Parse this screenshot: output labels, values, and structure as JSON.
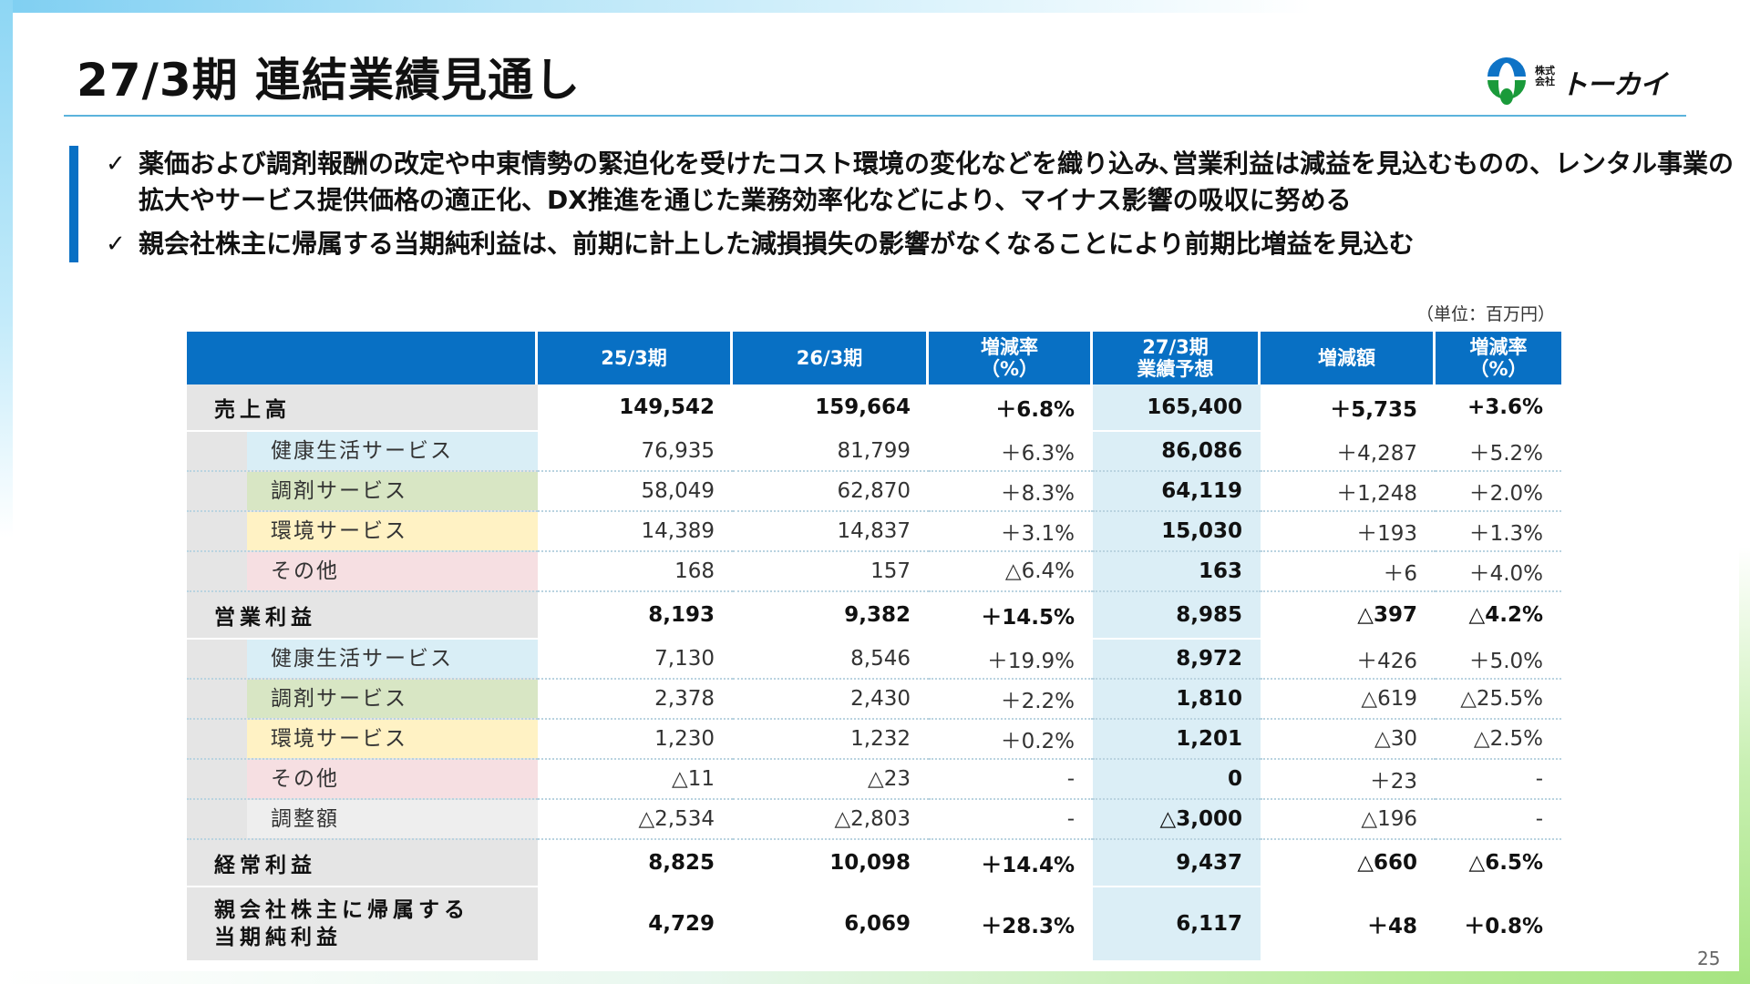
{
  "title": "27/3期 連結業績見通し",
  "logo": {
    "small": "株式会社",
    "name": "トーカイ"
  },
  "bullets": [
    "薬価および調剤報酬の改定や中東情勢の緊迫化を受けたコスト環境の変化などを織り込み､営業利益は減益を見込むものの、レンタル事業の拡大やサービス提供価格の適正化、DX推進を通じた業務効率化などにより、マイナス影響の吸収に努める",
    "親会社株主に帰属する当期純利益は、前期に計上した減損損失の影響がなくなることにより前期比増益を見込む"
  ],
  "unit": "（単位：百万円）",
  "table": {
    "headers": [
      "",
      "25/3期",
      "26/3期",
      "増減率\n（%）",
      "27/3期\n業績予想",
      "増減額",
      "増減率\n（%）"
    ],
    "rows": [
      {
        "type": "main",
        "label": "売上高",
        "cells": [
          "149,542",
          "159,664",
          "＋6.8%",
          "165,400",
          "＋5,735",
          "+3.6%"
        ]
      },
      {
        "type": "sub",
        "seg": "health",
        "label": "健康生活サービス",
        "cells": [
          "76,935",
          "81,799",
          "＋6.3%",
          "86,086",
          "＋4,287",
          "＋5.2%"
        ]
      },
      {
        "type": "sub",
        "seg": "pharm",
        "label": "調剤サービス",
        "cells": [
          "58,049",
          "62,870",
          "＋8.3%",
          "64,119",
          "＋1,248",
          "＋2.0%"
        ]
      },
      {
        "type": "sub",
        "seg": "env",
        "label": "環境サービス",
        "cells": [
          "14,389",
          "14,837",
          "＋3.1%",
          "15,030",
          "＋193",
          "＋1.3%"
        ]
      },
      {
        "type": "sub",
        "seg": "other",
        "label": "その他",
        "cells": [
          "168",
          "157",
          "△6.4%",
          "163",
          "＋6",
          "＋4.0%"
        ]
      },
      {
        "type": "main",
        "label": "営業利益",
        "cells": [
          "8,193",
          "9,382",
          "＋14.5%",
          "8,985",
          "△397",
          "△4.2%"
        ]
      },
      {
        "type": "sub",
        "seg": "health",
        "label": "健康生活サービス",
        "cells": [
          "7,130",
          "8,546",
          "＋19.9%",
          "8,972",
          "＋426",
          "＋5.0%"
        ]
      },
      {
        "type": "sub",
        "seg": "pharm",
        "label": "調剤サービス",
        "cells": [
          "2,378",
          "2,430",
          "＋2.2%",
          "1,810",
          "△619",
          "△25.5%"
        ]
      },
      {
        "type": "sub",
        "seg": "env",
        "label": "環境サービス",
        "cells": [
          "1,230",
          "1,232",
          "＋0.2%",
          "1,201",
          "△30",
          "△2.5%"
        ]
      },
      {
        "type": "sub",
        "seg": "other",
        "label": "その他",
        "cells": [
          "△11",
          "△23",
          "-",
          "0",
          "＋23",
          "-"
        ]
      },
      {
        "type": "sub",
        "seg": "adj",
        "label": "調整額",
        "cells": [
          "△2,534",
          "△2,803",
          "-",
          "△3,000",
          "△196",
          "-"
        ]
      },
      {
        "type": "main",
        "label": "経常利益",
        "cells": [
          "8,825",
          "10,098",
          "＋14.4%",
          "9,437",
          "△660",
          "△6.5%"
        ]
      },
      {
        "type": "main net",
        "label": "親会社株主に帰属する\n当期純利益",
        "cells": [
          "4,729",
          "6,069",
          "＋28.3%",
          "6,117",
          "＋48",
          "＋0.8%"
        ]
      }
    ]
  },
  "page_number": "25",
  "colors": {
    "accent": "#0870c4",
    "forecast_col": "#dbeef6"
  }
}
